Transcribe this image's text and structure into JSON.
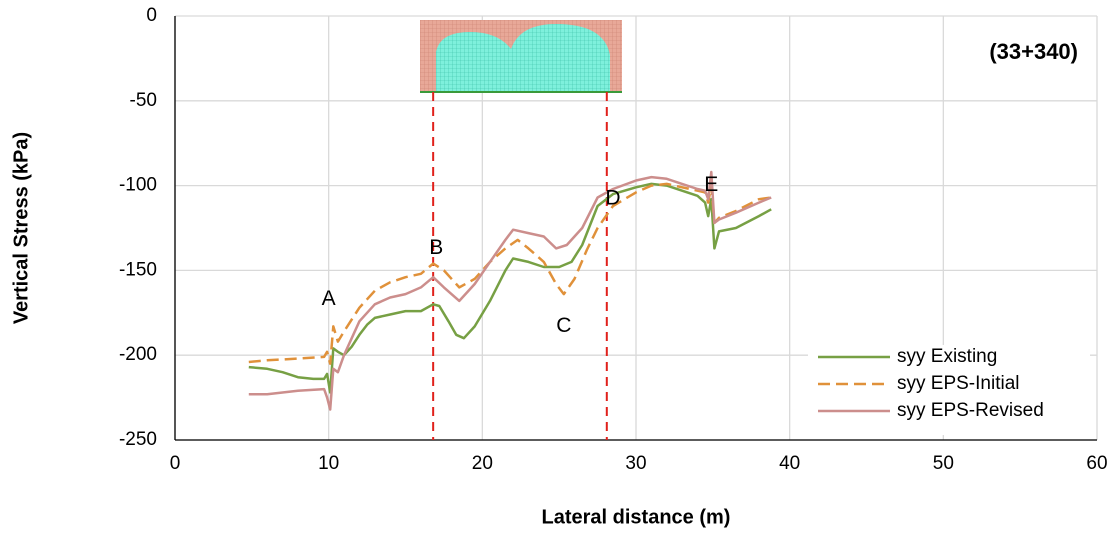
{
  "chart_data": {
    "type": "line",
    "section_label": "(33+340)",
    "x_label": "Lateral distance (m)",
    "y_label": "Vertical Stress (kPa)",
    "xlim": [
      0,
      60
    ],
    "xticks": [
      0,
      10,
      20,
      30,
      40,
      50,
      60
    ],
    "ylim": [
      -250,
      0
    ],
    "yticks": [
      -250,
      -200,
      -150,
      -100,
      -50,
      0
    ],
    "grid": true,
    "legend": "lower right",
    "series": [
      {
        "name": "syy Existing",
        "color": "#77a044",
        "dash": false,
        "x": [
          4.8,
          6,
          7,
          8,
          9,
          9.7,
          9.9,
          10.1,
          10.3,
          10.6,
          11,
          11.5,
          12,
          12.5,
          13,
          14,
          15,
          16,
          16.8,
          17.2,
          17.8,
          18.3,
          18.8,
          19.5,
          20.5,
          21.5,
          22,
          23,
          24,
          25,
          25.8,
          26.5,
          27.5,
          28.5,
          30,
          31,
          32,
          33,
          34,
          34.5,
          34.7,
          34.9,
          35.1,
          35.4,
          36.5,
          38,
          38.8
        ],
        "values": [
          -207,
          -208,
          -210,
          -213,
          -214,
          -214,
          -211,
          -222,
          -196,
          -198,
          -200,
          -195,
          -188,
          -182,
          -178,
          -176,
          -174,
          -174,
          -170,
          -171,
          -180,
          -188,
          -190,
          -183,
          -168,
          -150,
          -143,
          -145,
          -148,
          -148,
          -145,
          -135,
          -112,
          -105,
          -101,
          -99,
          -100,
          -103,
          -106,
          -110,
          -118,
          -108,
          -137,
          -127,
          -125,
          -118,
          -114
        ]
      },
      {
        "name": "syy EPS-Initial",
        "color": "#e0913a",
        "dash": true,
        "x": [
          4.8,
          6,
          8,
          9.7,
          9.9,
          10.1,
          10.3,
          10.6,
          11,
          12,
          13,
          14,
          15,
          16,
          16.8,
          17.5,
          18.5,
          19.5,
          20.5,
          21.5,
          22.3,
          23,
          24,
          24.8,
          25.3,
          26,
          26.8,
          27.5,
          28.5,
          30,
          31,
          32,
          33,
          34,
          34.5,
          34.7,
          34.9,
          35.1,
          35.4,
          36.5,
          38,
          38.8
        ],
        "values": [
          -204,
          -203,
          -202,
          -201,
          -198,
          -205,
          -183,
          -192,
          -186,
          -172,
          -162,
          -157,
          -154,
          -152,
          -146,
          -150,
          -160,
          -155,
          -145,
          -137,
          -132,
          -137,
          -145,
          -158,
          -164,
          -155,
          -138,
          -125,
          -112,
          -104,
          -100,
          -99,
          -101,
          -103,
          -104,
          -110,
          -100,
          -122,
          -119,
          -115,
          -108,
          -107
        ]
      },
      {
        "name": "syy EPS-Revised",
        "color": "#cc8e8c",
        "dash": false,
        "x": [
          4.8,
          6,
          8,
          9.7,
          9.9,
          10.1,
          10.3,
          10.6,
          11,
          12,
          13,
          14,
          15,
          16,
          16.8,
          17.5,
          18.5,
          19.5,
          20.5,
          21.5,
          22,
          23,
          24,
          24.8,
          25.5,
          26.5,
          27.5,
          28.5,
          30,
          31,
          32,
          33,
          34,
          34.5,
          34.7,
          34.9,
          35.1,
          35.4,
          36.5,
          38,
          38.8
        ],
        "values": [
          -223,
          -223,
          -221,
          -220,
          -225,
          -232,
          -208,
          -210,
          -200,
          -180,
          -170,
          -166,
          -164,
          -160,
          -154,
          -160,
          -168,
          -158,
          -145,
          -132,
          -126,
          -128,
          -130,
          -137,
          -135,
          -125,
          -107,
          -102,
          -97,
          -95,
          -96,
          -99,
          -102,
          -103,
          -108,
          -92,
          -122,
          -120,
          -116,
          -110,
          -107
        ]
      }
    ],
    "vlines": [
      {
        "x": 16.8,
        "color": "#e0201b"
      },
      {
        "x": 28.1,
        "color": "#e0201b"
      }
    ],
    "annotations": [
      {
        "text": "A",
        "x": 10,
        "y": -167
      },
      {
        "text": "B",
        "x": 17,
        "y": -137
      },
      {
        "text": "C",
        "x": 25.3,
        "y": -183
      },
      {
        "text": "D",
        "x": 28.5,
        "y": -108
      },
      {
        "text": "E",
        "x": 34.9,
        "y": -100
      }
    ]
  }
}
